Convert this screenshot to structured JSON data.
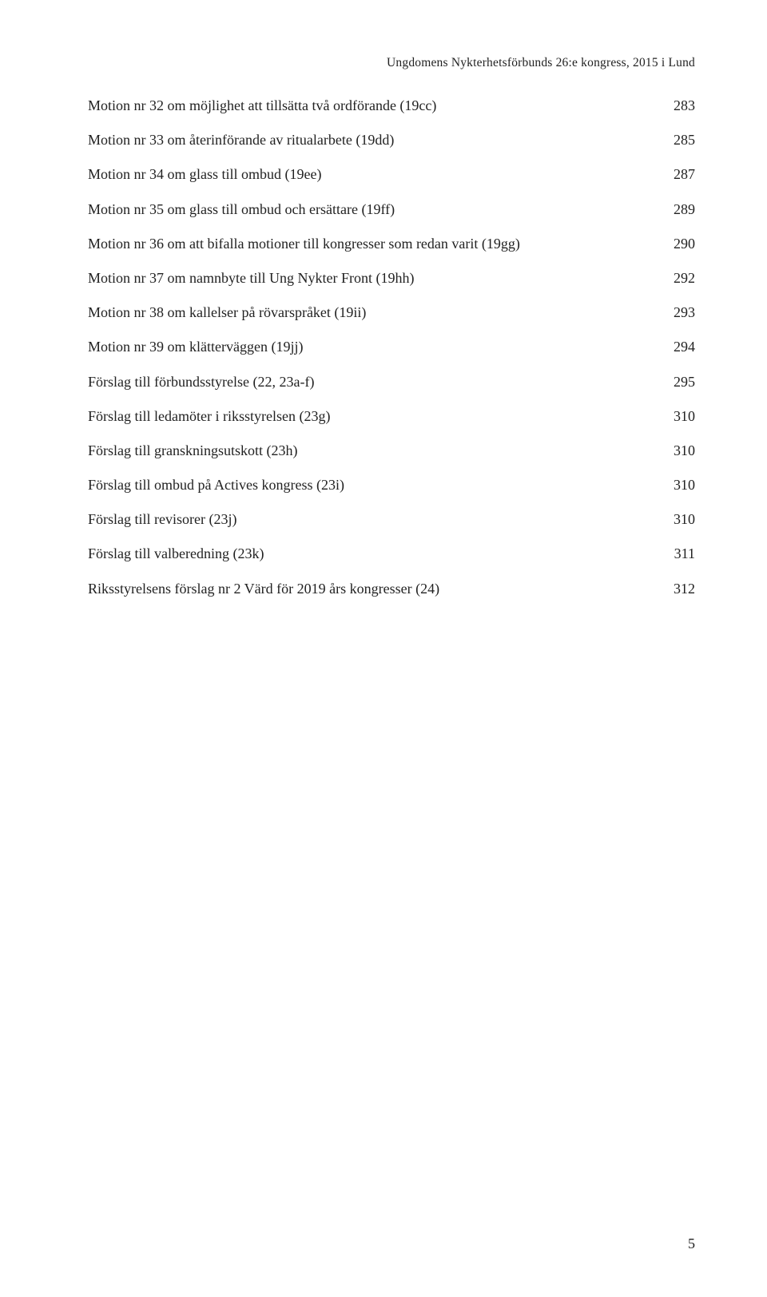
{
  "header": "Ungdomens Nykterhetsförbunds 26:e kongress, 2015 i Lund",
  "toc": [
    {
      "label": "Motion nr 32 om möjlighet att tillsätta två ordförande (19cc)",
      "page": "283"
    },
    {
      "label": "Motion nr 33 om återinförande av ritualarbete (19dd)",
      "page": "285"
    },
    {
      "label": "Motion nr 34 om glass till ombud (19ee)",
      "page": "287"
    },
    {
      "label": "Motion nr 35 om glass till ombud och ersättare (19ff)",
      "page": "289"
    },
    {
      "label": "Motion nr 36 om att bifalla motioner till kongresser som redan varit (19gg)",
      "page": "290"
    },
    {
      "label": "Motion nr 37 om namnbyte till Ung Nykter Front (19hh)",
      "page": "292"
    },
    {
      "label": "Motion nr 38 om kallelser på rövarspråket (19ii)",
      "page": "293"
    },
    {
      "label": "Motion nr 39 om klätterväggen (19jj)",
      "page": "294"
    },
    {
      "label": "Förslag till förbundsstyrelse (22, 23a-f)",
      "page": "295"
    },
    {
      "label": "Förslag till ledamöter i riksstyrelsen (23g)",
      "page": "310"
    },
    {
      "label": "Förslag till granskningsutskott (23h)",
      "page": "310"
    },
    {
      "label": "Förslag till ombud på Actives kongress (23i)",
      "page": "310"
    },
    {
      "label": "Förslag till revisorer (23j)",
      "page": "310"
    },
    {
      "label": "Förslag till valberedning (23k)",
      "page": "311"
    },
    {
      "label": "Riksstyrelsens förslag nr 2 Värd för 2019 års kongresser (24)",
      "page": "312"
    }
  ],
  "page_number": "5",
  "colors": {
    "background": "#ffffff",
    "text": "#222222"
  },
  "typography": {
    "body_fontsize": 18,
    "header_fontsize": 15.5,
    "pagenum_fontsize": 18,
    "font_family": "Georgia, serif"
  }
}
